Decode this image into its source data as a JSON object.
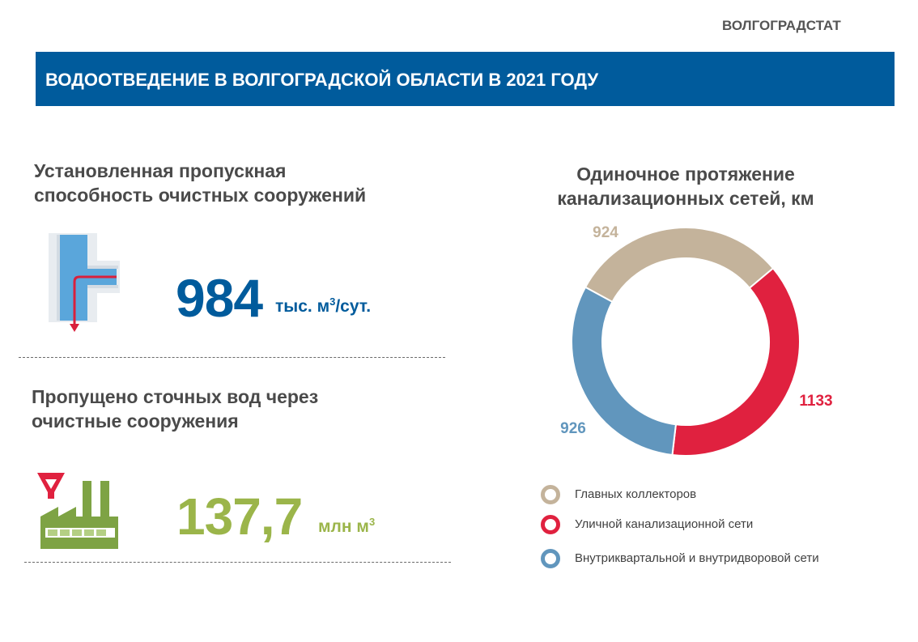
{
  "org": "ВОЛГОГРАДСТАТ",
  "banner_title": "ВОДООТВЕДЕНИЕ В ВОЛГОГРАДСКОЙ ОБЛАСТИ В 2021 ГОДУ",
  "capacity": {
    "title_line1": "Установленная пропускная",
    "title_line2": "способность очистных сооружений",
    "value": "984",
    "unit_base": "тыс. м",
    "unit_sup": "3",
    "unit_tail": "/сут.",
    "icon": "pipe-icon",
    "value_color": "#005b9c"
  },
  "wastewater": {
    "title_line1": "Пропущено сточных вод через",
    "title_line2": "очистные сооружения",
    "value": "137,7",
    "unit_base": "млн м",
    "unit_sup": "3",
    "icon": "factory-icon",
    "value_color": "#9bb54a"
  },
  "chart_data": {
    "type": "pie",
    "variant": "donut",
    "title_line1": "Одиночное протяжение",
    "title_line2": "канализационных сетей, км",
    "slices": [
      {
        "name": "Главных коллекторов",
        "value": 924,
        "color": "#c4b39b"
      },
      {
        "name": "Уличной канализационной сети",
        "value": 1133,
        "color": "#e0213f"
      },
      {
        "name": "Внутриквартальной и внутридворовой сети",
        "value": 926,
        "color": "#6196bd"
      }
    ],
    "data_labels": [
      "924",
      "1133",
      "926"
    ],
    "legend_placement": "bottom"
  }
}
